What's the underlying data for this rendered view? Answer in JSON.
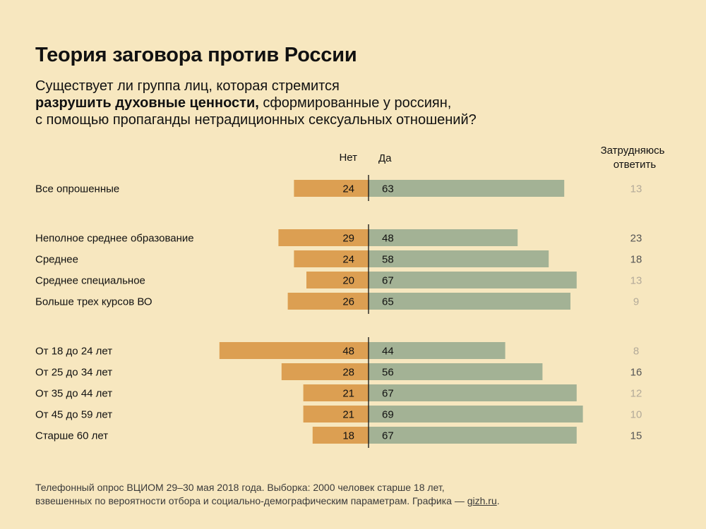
{
  "title": "Теория заговора против России",
  "subtitle": {
    "line1": "Существует ли группа лиц, которая стремится",
    "bold": "разрушить духовные ценности,",
    "line2_rest": " сформированные у россиян,",
    "line3": "с помощью пропаганды нетрадиционных сексуальных отношений?"
  },
  "source": {
    "line1": "Телефонный опрос ВЦИОМ 29–30 мая 2018 года. Выборка: 2000 человек старше 18 лет,",
    "line2": "взвешенных по вероятности отбора и социально-демографическим параметрам. Графика — ",
    "link": "gizh.ru",
    "end": "."
  },
  "chart_data": {
    "type": "bar",
    "orientation": "horizontal-diverging",
    "column_headers": {
      "no": "Нет",
      "yes": "Да",
      "hard_line1": "Затрудняюсь",
      "hard_line2": "ответить"
    },
    "colors": {
      "no": "#dc9f52",
      "yes": "#a3b295",
      "hard_dark": "#555555",
      "hard_light": "#b3aa99",
      "divider": "#111111"
    },
    "groups": [
      {
        "rows": [
          {
            "label": "Все опрошенные",
            "no": 24,
            "yes": 63,
            "hard": 13,
            "hard_muted": true
          }
        ]
      },
      {
        "rows": [
          {
            "label": "Неполное среднее образование",
            "no": 29,
            "yes": 48,
            "hard": 23,
            "hard_muted": false
          },
          {
            "label": "Среднее",
            "no": 24,
            "yes": 58,
            "hard": 18,
            "hard_muted": false
          },
          {
            "label": "Среднее специальное",
            "no": 20,
            "yes": 67,
            "hard": 13,
            "hard_muted": true
          },
          {
            "label": "Больше трех курсов ВО",
            "no": 26,
            "yes": 65,
            "hard": 9,
            "hard_muted": true
          }
        ]
      },
      {
        "rows": [
          {
            "label": "От 18 до 24 лет",
            "no": 48,
            "yes": 44,
            "hard": 8,
            "hard_muted": true
          },
          {
            "label": "От 25 до 34 лет",
            "no": 28,
            "yes": 56,
            "hard": 16,
            "hard_muted": false
          },
          {
            "label": "От 35 до 44 лет",
            "no": 21,
            "yes": 67,
            "hard": 12,
            "hard_muted": true
          },
          {
            "label": "От 45 до 59 лет",
            "no": 21,
            "yes": 69,
            "hard": 10,
            "hard_muted": true
          },
          {
            "label": "Старше 60 лет",
            "no": 18,
            "yes": 67,
            "hard": 15,
            "hard_muted": false
          }
        ]
      }
    ]
  }
}
